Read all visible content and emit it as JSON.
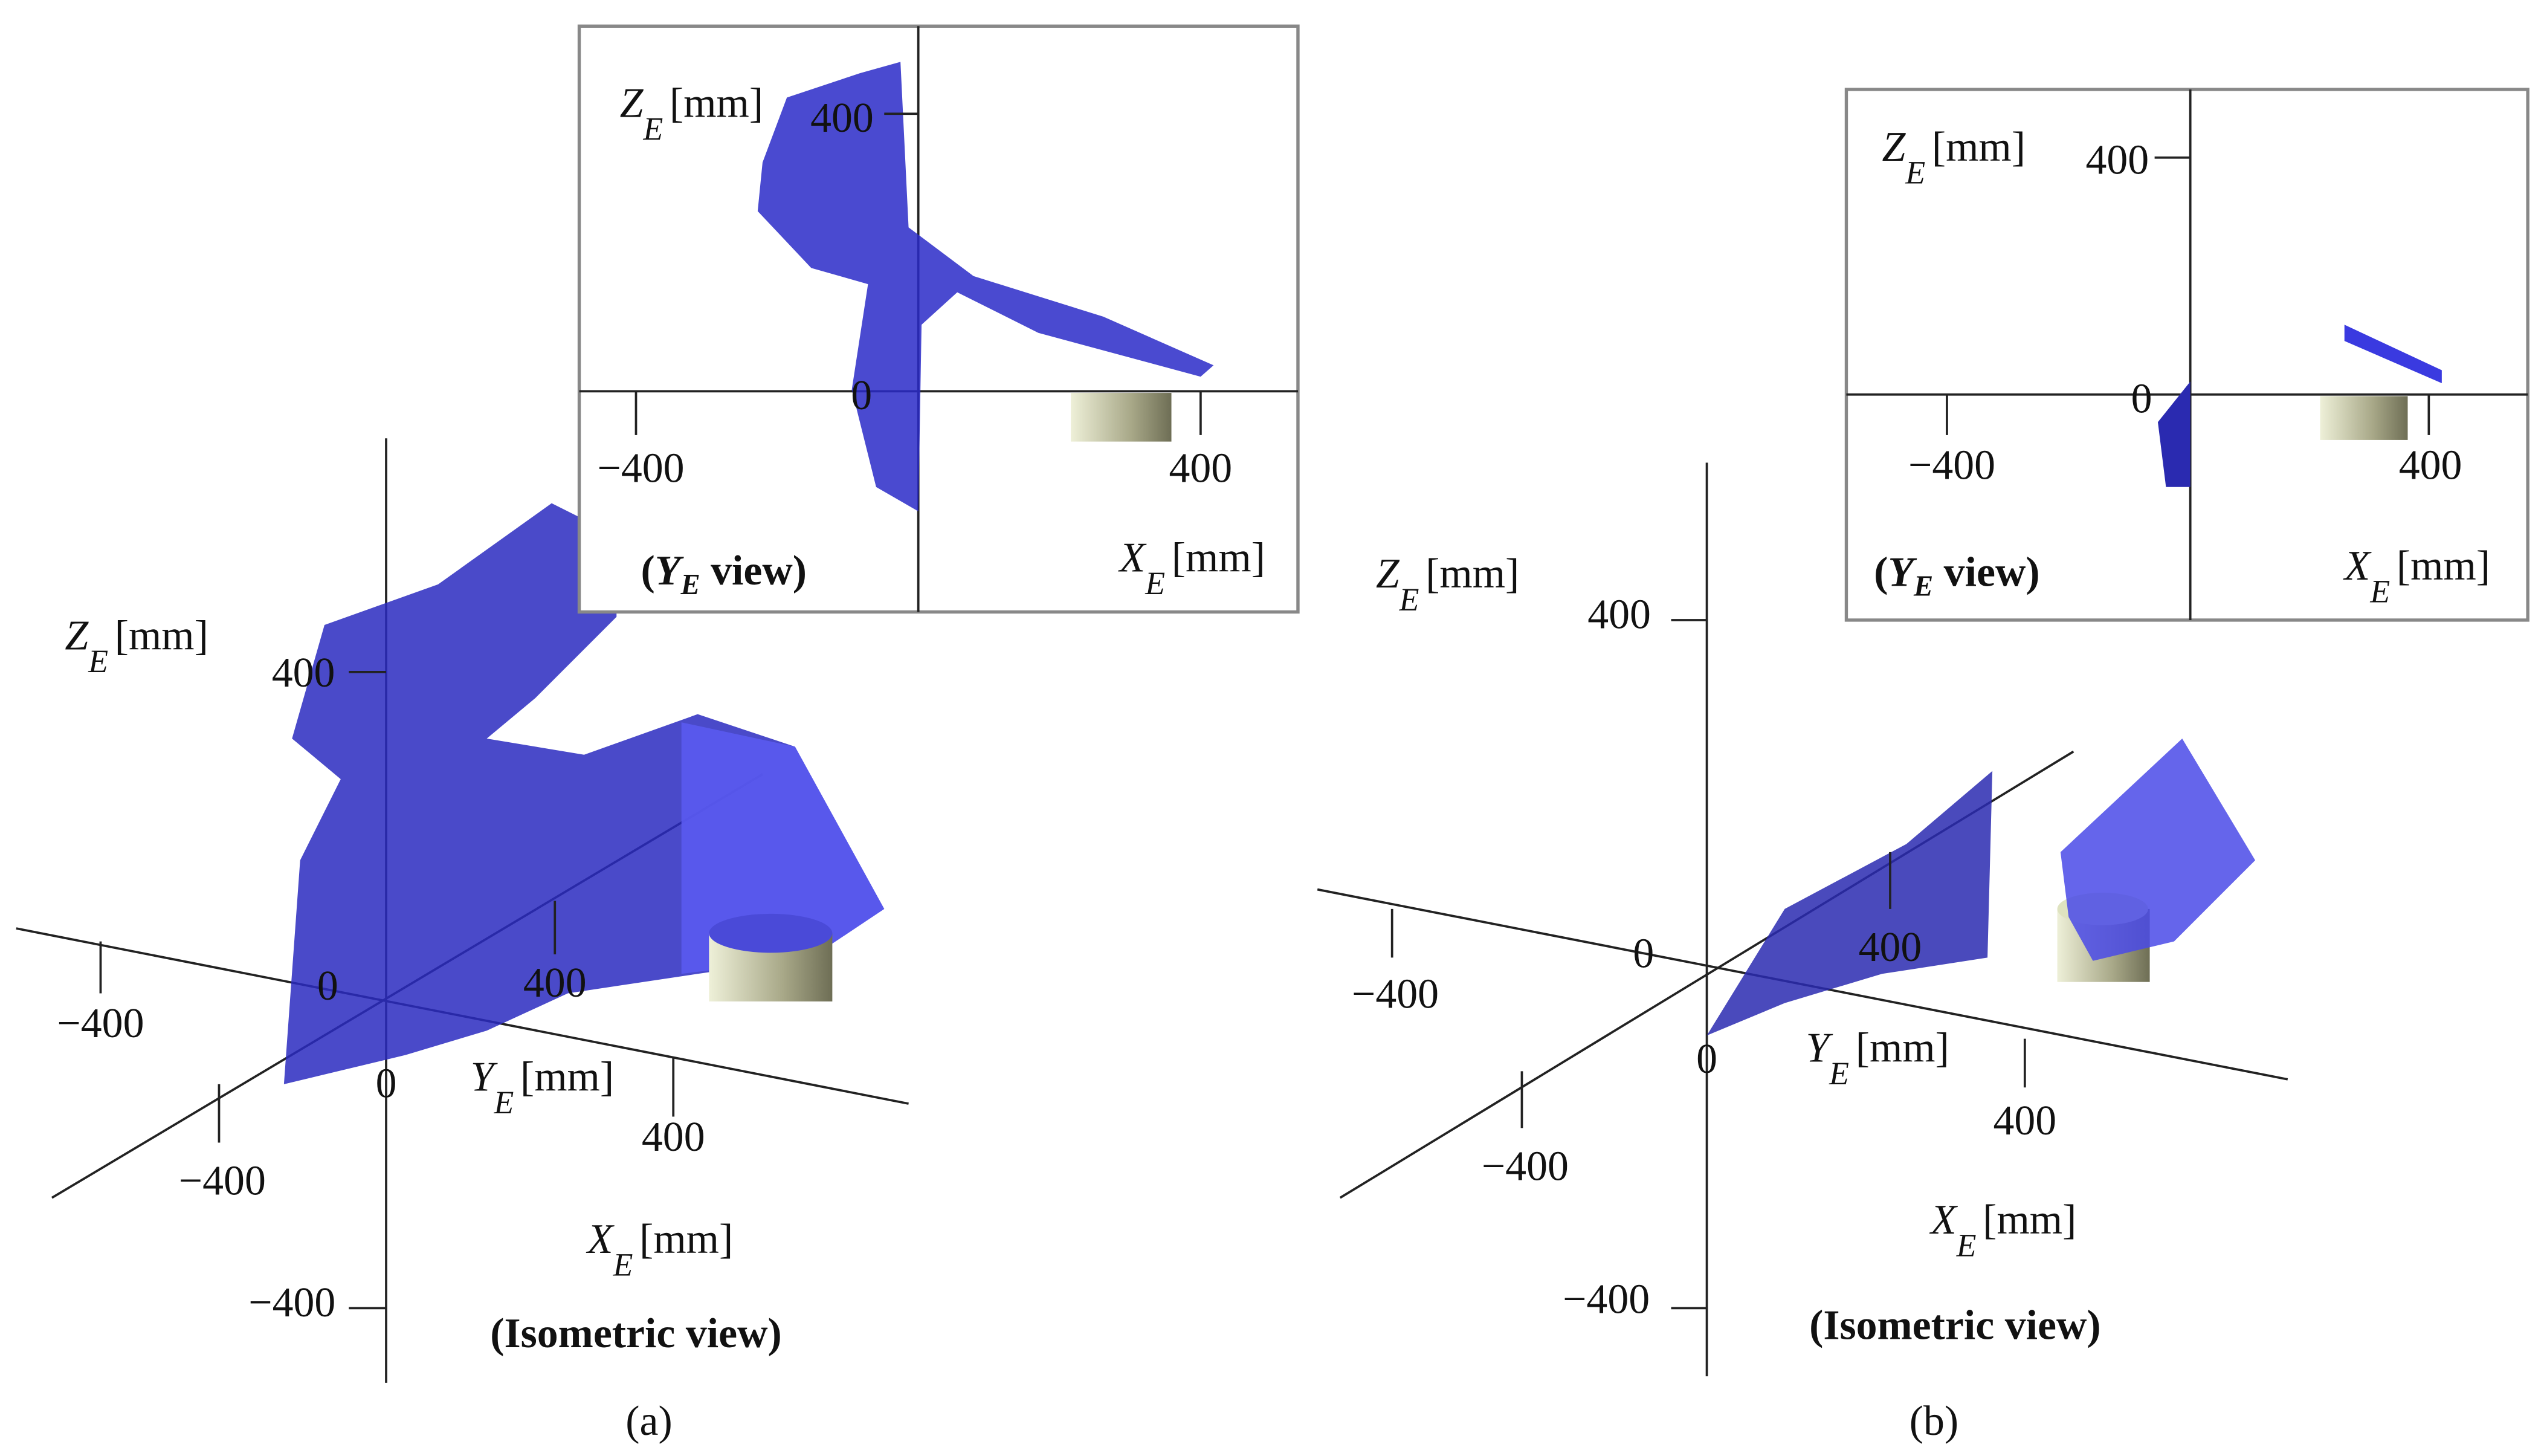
{
  "panels": [
    {
      "caption": "(a)",
      "isometric": {
        "title": "(Isometric view)",
        "ticks": [
          "400",
          "−400",
          "0",
          "−400",
          "400",
          "−400",
          "400",
          "0"
        ],
        "z_label": {
          "letter": "Z",
          "subscript": "E",
          "unit": "[mm]"
        },
        "y_label": {
          "letter": "Y",
          "subscript": "E",
          "unit": "[mm]"
        },
        "x_label": {
          "letter": "X",
          "subscript": "E",
          "unit": "[mm]"
        }
      },
      "inset": {
        "title": {
          "open": "(",
          "letter": "Y",
          "subscript": "E",
          "rest": " view)"
        },
        "ticks": [
          "400",
          "0",
          "−400",
          "400"
        ],
        "z_label": {
          "letter": "Z",
          "subscript": "E",
          "unit": "[mm]"
        },
        "x_label": {
          "letter": "X",
          "subscript": "E",
          "unit": "[mm]"
        }
      }
    },
    {
      "caption": "(b)",
      "isometric": {
        "title": "(Isometric view)",
        "ticks": [
          "400",
          "−400",
          "0",
          "−400",
          "400",
          "−400",
          "400",
          "0"
        ],
        "z_label": {
          "letter": "Z",
          "subscript": "E",
          "unit": "[mm]"
        },
        "y_label": {
          "letter": "Y",
          "subscript": "E",
          "unit": "[mm]"
        },
        "x_label": {
          "letter": "X",
          "subscript": "E",
          "unit": "[mm]"
        }
      },
      "inset": {
        "title": {
          "open": "(",
          "letter": "Y",
          "subscript": "E",
          "rest": " view)"
        },
        "ticks": [
          "400",
          "0",
          "−400",
          "400"
        ],
        "z_label": {
          "letter": "Z",
          "subscript": "E",
          "unit": "[mm]"
        },
        "x_label": {
          "letter": "X",
          "subscript": "E",
          "unit": "[mm]"
        }
      }
    }
  ]
}
